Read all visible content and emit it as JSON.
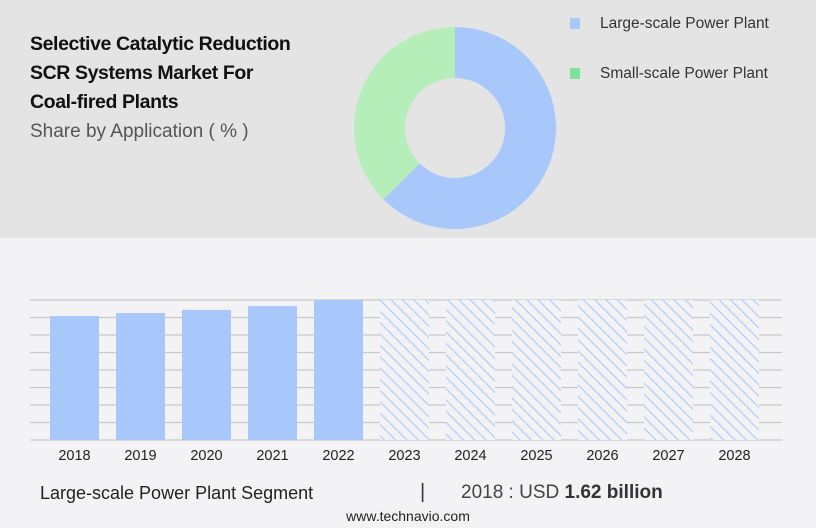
{
  "chart_data": [
    {
      "type": "pie",
      "title": "Selective Catalytic Reduction SCR Systems Market For Coal-fired Plants",
      "title_lines": [
        "Selective Catalytic Reduction",
        "SCR Systems Market For",
        "Coal-fired Plants"
      ],
      "subtitle": "Share by Application ( % )",
      "donut": true,
      "legend": "top-right",
      "slices": [
        {
          "label": "Large-scale Power Plant",
          "value": 62.5,
          "color": "#a8c8fc"
        },
        {
          "label": "Small-scale Power Plant",
          "value": 37.5,
          "color": "#b5eeb9"
        }
      ],
      "legend_colors": [
        "#a8c8fc",
        "#7ee29a"
      ]
    },
    {
      "type": "bar",
      "categories": [
        "2018",
        "2019",
        "2020",
        "2021",
        "2022",
        "2023",
        "2024",
        "2025",
        "2026",
        "2027",
        "2028"
      ],
      "values": [
        1.62,
        1.66,
        1.7,
        1.75,
        1.83,
        null,
        null,
        null,
        null,
        null,
        null
      ],
      "forecast_from": "2023",
      "ylim": [
        0,
        1.83
      ],
      "grid": true,
      "gridlines": 8,
      "xlabel": "",
      "ylabel": "",
      "color": "#a8c8fc"
    }
  ],
  "footer": {
    "segment": "Large-scale Power Plant Segment",
    "separator": "|",
    "value_prefix": "2018 : USD",
    "value_bold": "1.62 billion",
    "url": "www.technavio.com"
  }
}
